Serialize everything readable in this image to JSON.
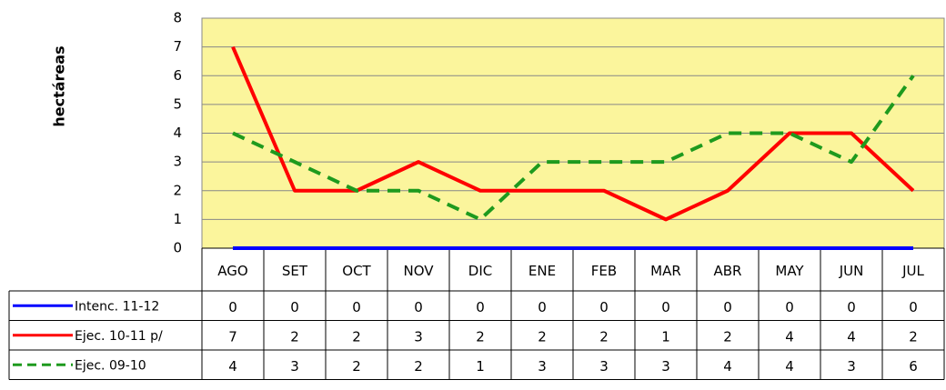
{
  "chart_data": {
    "type": "line",
    "ylabel": "hectáreas",
    "categories": [
      "AGO",
      "SET",
      "OCT",
      "NOV",
      "DIC",
      "ENE",
      "FEB",
      "MAR",
      "ABR",
      "MAY",
      "JUN",
      "JUL"
    ],
    "series": [
      {
        "name": "Intenc. 11-12",
        "color": "#0000ff",
        "line_style": "solid",
        "values": [
          0,
          0,
          0,
          0,
          0,
          0,
          0,
          0,
          0,
          0,
          0,
          0
        ]
      },
      {
        "name": "Ejec. 10-11 p/",
        "color": "#ff0000",
        "line_style": "solid",
        "values": [
          7,
          2,
          2,
          3,
          2,
          2,
          2,
          1,
          2,
          4,
          4,
          2
        ]
      },
      {
        "name": "Ejec. 09-10",
        "color": "#1e9a1e",
        "line_style": "dashed",
        "values": [
          4,
          3,
          2,
          2,
          1,
          3,
          3,
          3,
          4,
          4,
          3,
          6
        ]
      }
    ],
    "ylim": [
      0,
      8
    ],
    "yticks": [
      0,
      1,
      2,
      3,
      4,
      5,
      6,
      7,
      8
    ],
    "grid": true,
    "data_table": true
  }
}
